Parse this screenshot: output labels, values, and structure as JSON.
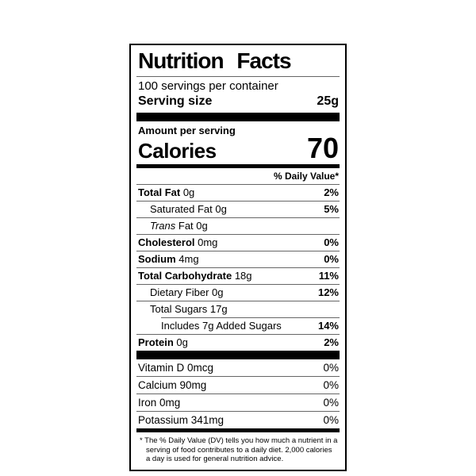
{
  "label": {
    "title": "Nutrition Facts",
    "servings_per_container": "100 servings per container",
    "serving_size": {
      "label": "Serving size",
      "value": "25g"
    },
    "amount_per_serving": "Amount per serving",
    "calories": {
      "label": "Calories",
      "value": "70"
    },
    "daily_value_header": "% Daily Value*",
    "nutrients": [
      {
        "name": "Total Fat",
        "amount": "0g",
        "dv": "2%",
        "style": "bold",
        "indent": 0
      },
      {
        "name": "Saturated Fat",
        "amount": "0g",
        "dv": "5%",
        "style": "regular",
        "indent": 1
      },
      {
        "name": "Trans",
        "amount": "Fat 0g",
        "dv": "",
        "style": "italic-name",
        "indent": 1
      },
      {
        "name": "Cholesterol",
        "amount": "0mg",
        "dv": "0%",
        "style": "bold",
        "indent": 0
      },
      {
        "name": "Sodium",
        "amount": "4mg",
        "dv": "0%",
        "style": "bold",
        "indent": 0
      },
      {
        "name": "Total Carbohydrate",
        "amount": "18g",
        "dv": "11%",
        "style": "bold",
        "indent": 0
      },
      {
        "name": "Dietary Fiber",
        "amount": "0g",
        "dv": "12%",
        "style": "regular",
        "indent": 1
      },
      {
        "name": "Total Sugars",
        "amount": "17g",
        "dv": "",
        "style": "regular",
        "indent": 1
      },
      {
        "name": "Includes 7g Added Sugars",
        "amount": "",
        "dv": "14%",
        "style": "regular",
        "indent": 2,
        "sep_indent": true
      },
      {
        "name": "Protein",
        "amount": "0g",
        "dv": "2%",
        "style": "bold",
        "indent": 0
      }
    ],
    "vitamins": [
      {
        "name": "Vitamin D",
        "amount": "0mcg",
        "dv": "0%"
      },
      {
        "name": "Calcium",
        "amount": "90mg",
        "dv": "0%"
      },
      {
        "name": "Iron",
        "amount": "0mg",
        "dv": "0%"
      },
      {
        "name": "Potassium",
        "amount": "341mg",
        "dv": "0%"
      }
    ],
    "footnote": "* The % Daily Value (DV) tells you how much a nutrient in a serving of food contributes to a daily diet. 2,000 calories a day is used for general nutrition advice.",
    "colors": {
      "ink": "#000000",
      "hairline": "#666666",
      "background": "#ffffff"
    }
  }
}
